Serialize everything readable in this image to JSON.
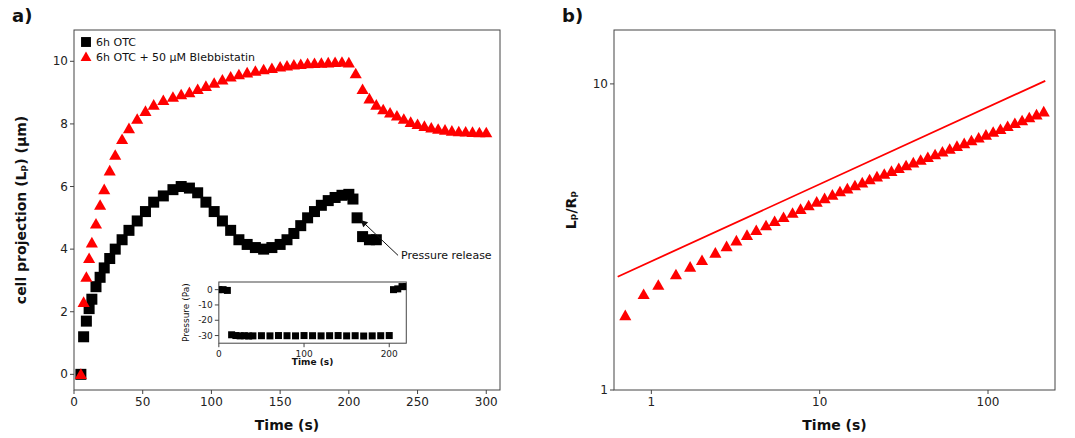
{
  "chart_data": [
    {
      "type": "scatter",
      "title": "a)",
      "xlabel": "Time (s)",
      "ylabel": "cell projection (Lₚ) (μm)",
      "xlim": [
        0,
        310
      ],
      "ylim": [
        -0.5,
        11
      ],
      "xticks": [
        0,
        50,
        100,
        150,
        200,
        250,
        300
      ],
      "yticks": [
        0,
        2,
        4,
        6,
        8,
        10
      ],
      "grid": false,
      "legend": "upper left",
      "series": [
        {
          "name": "6h OTC",
          "color": "black",
          "marker": "square",
          "x": [
            5,
            7,
            9,
            11,
            13,
            16,
            19,
            22,
            26,
            30,
            35,
            40,
            46,
            52,
            58,
            65,
            72,
            78,
            84,
            90,
            96,
            102,
            108,
            114,
            120,
            126,
            132,
            138,
            144,
            150,
            155,
            160,
            165,
            170,
            175,
            180,
            185,
            190,
            195,
            200,
            203,
            206,
            210,
            215,
            220
          ],
          "values": [
            0.0,
            1.2,
            1.7,
            2.1,
            2.4,
            2.8,
            3.1,
            3.4,
            3.7,
            4.0,
            4.3,
            4.6,
            4.9,
            5.2,
            5.5,
            5.7,
            5.9,
            6.0,
            5.95,
            5.8,
            5.5,
            5.2,
            4.9,
            4.6,
            4.3,
            4.15,
            4.05,
            4.0,
            4.05,
            4.15,
            4.3,
            4.5,
            4.75,
            5.0,
            5.2,
            5.4,
            5.55,
            5.65,
            5.72,
            5.75,
            5.6,
            5.0,
            4.4,
            4.3,
            4.3
          ]
        },
        {
          "name": "6h OTC + 50 μM Blebbistatin",
          "color": "red",
          "marker": "triangle",
          "x": [
            5,
            7,
            9,
            11,
            13,
            16,
            19,
            22,
            26,
            30,
            35,
            40,
            46,
            52,
            58,
            65,
            72,
            78,
            84,
            90,
            96,
            102,
            108,
            114,
            120,
            126,
            132,
            138,
            144,
            150,
            155,
            160,
            165,
            170,
            175,
            180,
            185,
            190,
            195,
            200,
            205,
            210,
            215,
            220,
            225,
            230,
            235,
            240,
            245,
            250,
            255,
            260,
            265,
            270,
            275,
            280,
            285,
            290,
            295,
            300
          ],
          "values": [
            0.0,
            2.3,
            3.1,
            3.7,
            4.2,
            4.8,
            5.4,
            5.9,
            6.5,
            7.0,
            7.5,
            7.85,
            8.15,
            8.4,
            8.6,
            8.75,
            8.85,
            8.93,
            9.0,
            9.1,
            9.2,
            9.3,
            9.4,
            9.5,
            9.57,
            9.63,
            9.68,
            9.73,
            9.77,
            9.82,
            9.85,
            9.88,
            9.9,
            9.92,
            9.93,
            9.94,
            9.95,
            9.96,
            9.97,
            9.95,
            9.6,
            9.1,
            8.8,
            8.6,
            8.45,
            8.35,
            8.25,
            8.15,
            8.05,
            7.98,
            7.92,
            7.87,
            7.83,
            7.8,
            7.77,
            7.75,
            7.74,
            7.73,
            7.72,
            7.72
          ]
        }
      ],
      "annotations": [
        {
          "text": "Pressure release",
          "xy": [
            207,
            5.0
          ],
          "xytext": [
            238,
            3.8
          ]
        }
      ]
    },
    {
      "type": "scatter",
      "xlabel": "Time (s)",
      "ylabel": "Pressure (Pa)",
      "xlim": [
        0,
        220
      ],
      "ylim": [
        -35,
        5
      ],
      "xticks": [
        0,
        100,
        200
      ],
      "yticks": [
        0,
        -10,
        -20,
        -30
      ],
      "grid": false,
      "series": [
        {
          "color": "black",
          "marker": "square",
          "x": [
            0,
            5,
            10,
            15,
            20,
            25,
            30,
            35,
            40,
            50,
            60,
            70,
            80,
            90,
            100,
            110,
            120,
            130,
            140,
            150,
            160,
            170,
            180,
            190,
            200,
            205,
            210,
            215,
            220
          ],
          "values": [
            0,
            0,
            -0.5,
            -29.5,
            -30.0,
            -30.2,
            -30.1,
            -30.3,
            -30.2,
            -30.1,
            -30.2,
            -30.0,
            -30.1,
            -30.2,
            -30.0,
            -30.1,
            -30.2,
            -30.1,
            -30.0,
            -30.2,
            -30.1,
            -30.3,
            -30.2,
            -30.1,
            -30.0,
            0,
            0.5,
            2,
            2
          ]
        }
      ]
    },
    {
      "type": "scatter",
      "title": "b)",
      "xlabel": "Time (s)",
      "ylabel": "Lₚ/Rₚ",
      "log": true,
      "xlim": [
        0.6,
        250
      ],
      "ylim": [
        1,
        15
      ],
      "xticks": [
        1,
        10,
        100
      ],
      "yticks": [
        1,
        10
      ],
      "grid": false,
      "series": [
        {
          "type": "scatter",
          "color": "#ff0000",
          "marker": "triangle",
          "x": [
            0.7,
            0.9,
            1.1,
            1.4,
            1.7,
            2.0,
            2.4,
            2.8,
            3.2,
            3.7,
            4.2,
            4.8,
            5.4,
            6.1,
            6.9,
            7.7,
            8.6,
            9.6,
            10.7,
            11.9,
            13.2,
            14.6,
            16.2,
            17.9,
            19.8,
            21.9,
            24.2,
            26.7,
            29.5,
            32.6,
            36.0,
            39.8,
            43.9,
            48.5,
            53.6,
            59.2,
            65.4,
            72.2,
            79.7,
            88.0,
            97.2,
            107.3,
            118.5,
            130.8,
            144.4,
            159.4,
            175.9,
            194.2,
            214.3
          ],
          "values": [
            1.75,
            2.05,
            2.2,
            2.38,
            2.52,
            2.65,
            2.8,
            2.94,
            3.07,
            3.2,
            3.32,
            3.44,
            3.55,
            3.66,
            3.78,
            3.89,
            4.0,
            4.11,
            4.22,
            4.33,
            4.44,
            4.54,
            4.65,
            4.75,
            4.86,
            4.97,
            5.07,
            5.18,
            5.29,
            5.4,
            5.52,
            5.63,
            5.75,
            5.87,
            5.99,
            6.12,
            6.25,
            6.38,
            6.52,
            6.66,
            6.8,
            6.95,
            7.1,
            7.26,
            7.42,
            7.58,
            7.75,
            7.92,
            8.1
          ]
        },
        {
          "type": "line",
          "color": "#ff0000",
          "line_style": "solid",
          "x": [
            0.6309573444801932,
            218.7761623949553
          ],
          "values": [
            2.344228815319922,
            10.232929922807541
          ]
        }
      ]
    }
  ]
}
